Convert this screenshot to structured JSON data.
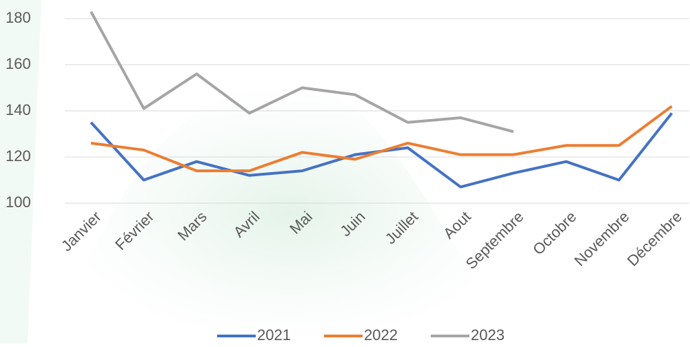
{
  "chart_data": {
    "type": "line",
    "categories": [
      "Janvier",
      "Février",
      "Mars",
      "Avril",
      "Mai",
      "Juin",
      "Juillet",
      "Aout",
      "Septembre",
      "Octobre",
      "Novembre",
      "Décembre"
    ],
    "series": [
      {
        "name": "2021",
        "color": "#4472c4",
        "values": [
          135,
          110,
          118,
          112,
          114,
          121,
          124,
          107,
          113,
          118,
          110,
          139
        ]
      },
      {
        "name": "2022",
        "color": "#ed7d31",
        "values": [
          126,
          123,
          114,
          114,
          122,
          119,
          126,
          121,
          121,
          125,
          125,
          142
        ]
      },
      {
        "name": "2023",
        "color": "#a5a5a5",
        "values": [
          183,
          141,
          156,
          139,
          150,
          147,
          135,
          137,
          131,
          null,
          null,
          null
        ]
      }
    ],
    "ylim": [
      100,
      180
    ],
    "yticks": [
      100,
      120,
      140,
      160,
      180
    ],
    "grid": true,
    "legend": "bottom"
  }
}
